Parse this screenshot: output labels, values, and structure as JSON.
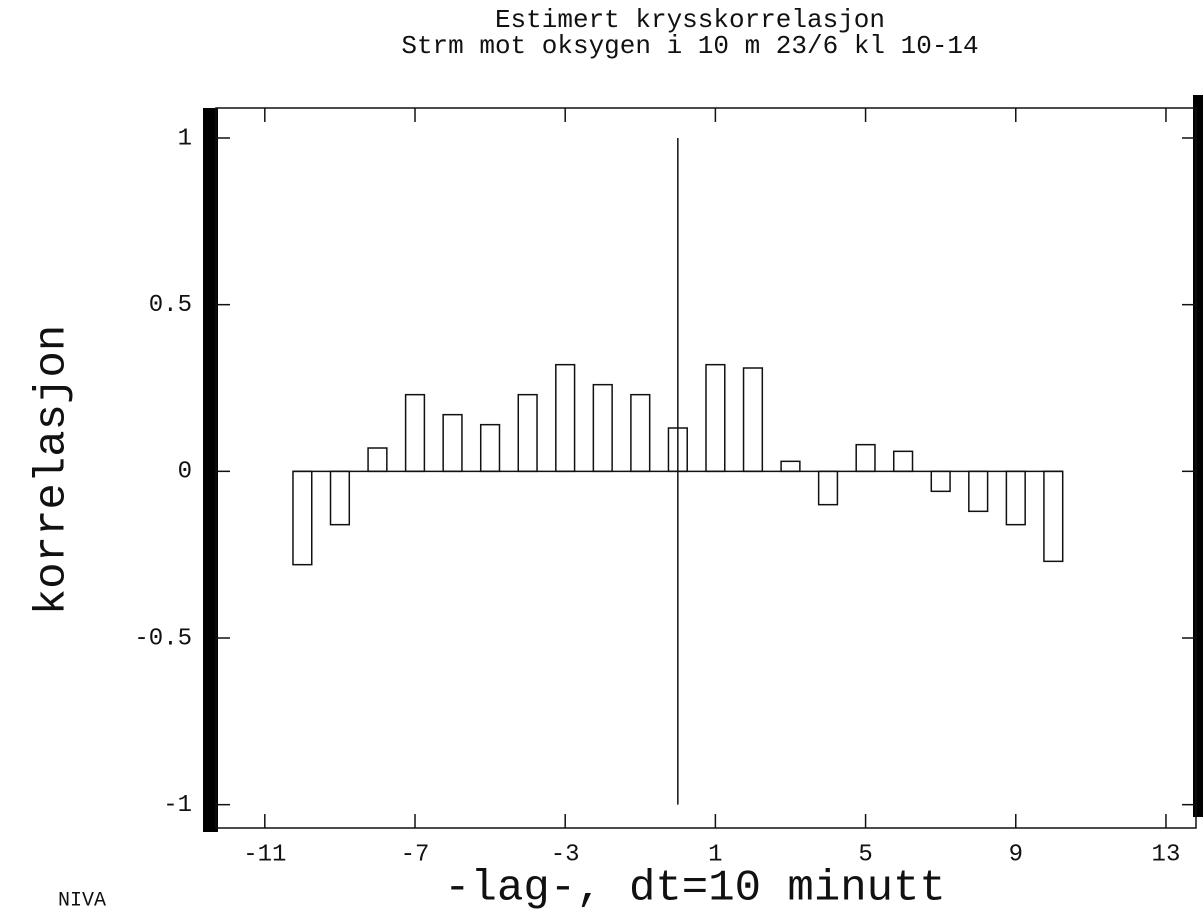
{
  "chart_data": {
    "type": "bar",
    "title": "Estimert krysskorrelasjon",
    "subtitle": "Strm mot oksygen i 10 m 23/6 kl 10-14",
    "x_label": "-lag-, dt=10 minutt",
    "y_label": "korrelasjon",
    "footer": "NIVA",
    "x": [
      -10,
      -9,
      -8,
      -7,
      -6,
      -5,
      -4,
      -3,
      -2,
      -1,
      0,
      1,
      2,
      3,
      4,
      5,
      6,
      7,
      8,
      9,
      10
    ],
    "values": [
      -0.28,
      -0.16,
      0.07,
      0.23,
      0.17,
      0.14,
      0.23,
      0.32,
      0.26,
      0.23,
      0.13,
      0.32,
      0.31,
      0.03,
      -0.1,
      0.08,
      0.06,
      -0.06,
      -0.12,
      -0.16,
      -0.27
    ],
    "color": "#ffffff",
    "xlim": [
      -12.3,
      13.8
    ],
    "ylim": [
      -1.07,
      1.09
    ],
    "xticks": [
      -11,
      -7,
      -3,
      1,
      5,
      9,
      13
    ],
    "yticks": [
      -1,
      -0.5,
      0,
      0.5,
      1
    ],
    "grid": false
  }
}
